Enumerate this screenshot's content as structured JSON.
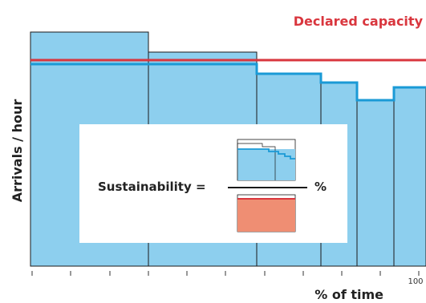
{
  "labels": {
    "declared_capacity": "Declared capacity",
    "y_axis": "Arrivals / hour",
    "x_axis": "% of time",
    "x_tick_max": "100",
    "formula_name": "Sustainability =",
    "formula_unit": "%"
  },
  "colors": {
    "bar_fill": "#8dcfee",
    "bar_stroke": "#1a1a1a",
    "demand_line": "#1a9ad6",
    "capacity_line": "#d9363e",
    "capacity_area": "#ef8e73",
    "text": "#222222"
  }
}
